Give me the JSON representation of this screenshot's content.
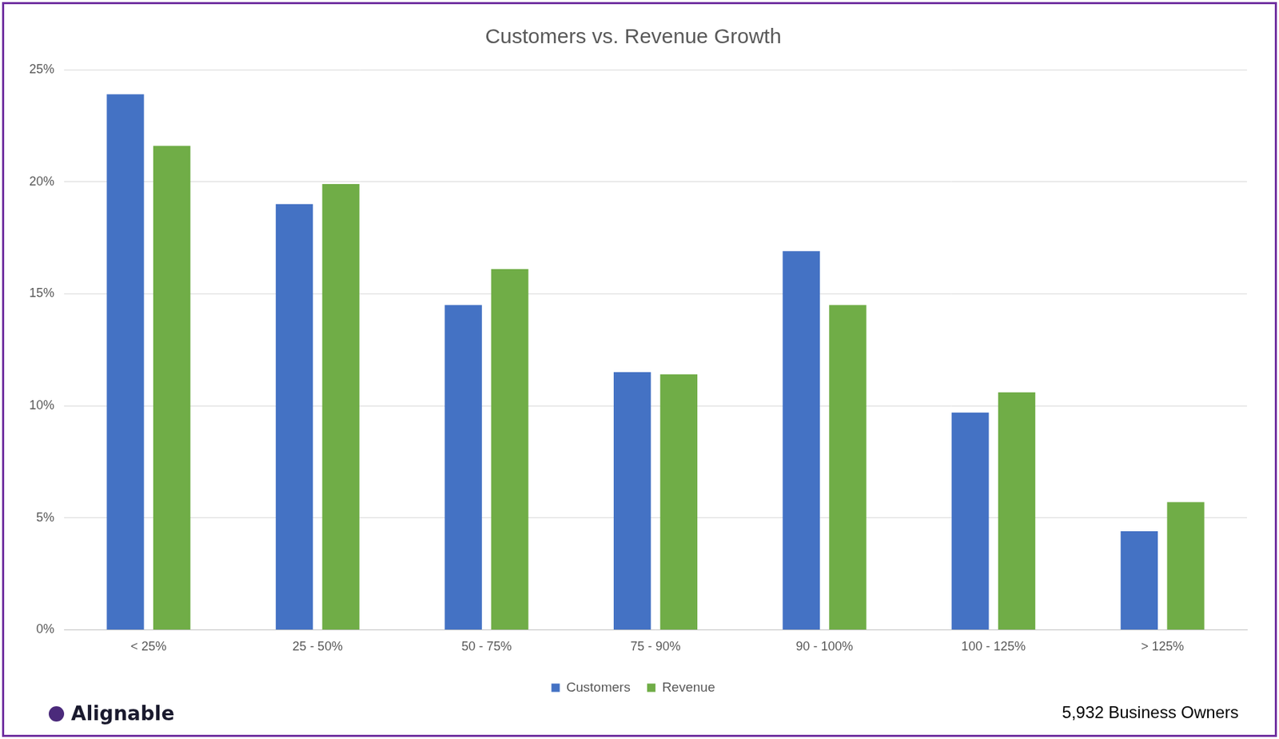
{
  "chart_data": {
    "type": "bar",
    "title": "Customers vs. Revenue Growth",
    "categories": [
      "< 25%",
      "25 - 50%",
      "50 - 75%",
      "75 - 90%",
      "90 - 100%",
      "100 - 125%",
      "> 125%"
    ],
    "series": [
      {
        "name": "Customers",
        "color": "#4472c4",
        "values": [
          23.9,
          19.0,
          14.5,
          11.5,
          16.9,
          9.7,
          4.4
        ]
      },
      {
        "name": "Revenue",
        "color": "#70ad47",
        "values": [
          21.6,
          19.9,
          16.1,
          11.4,
          14.5,
          10.6,
          5.7
        ]
      }
    ],
    "ylim": [
      0,
      25
    ],
    "yticks": [
      {
        "value": 0,
        "label": "0%"
      },
      {
        "value": 5,
        "label": "5%"
      },
      {
        "value": 10,
        "label": "10%"
      },
      {
        "value": 15,
        "label": "15%"
      },
      {
        "value": 20,
        "label": "20%"
      },
      {
        "value": 25,
        "label": "25%"
      }
    ],
    "grid": true,
    "legend": "bottom",
    "annotations": [
      "Alignable",
      "5,932 Business Owners"
    ]
  }
}
